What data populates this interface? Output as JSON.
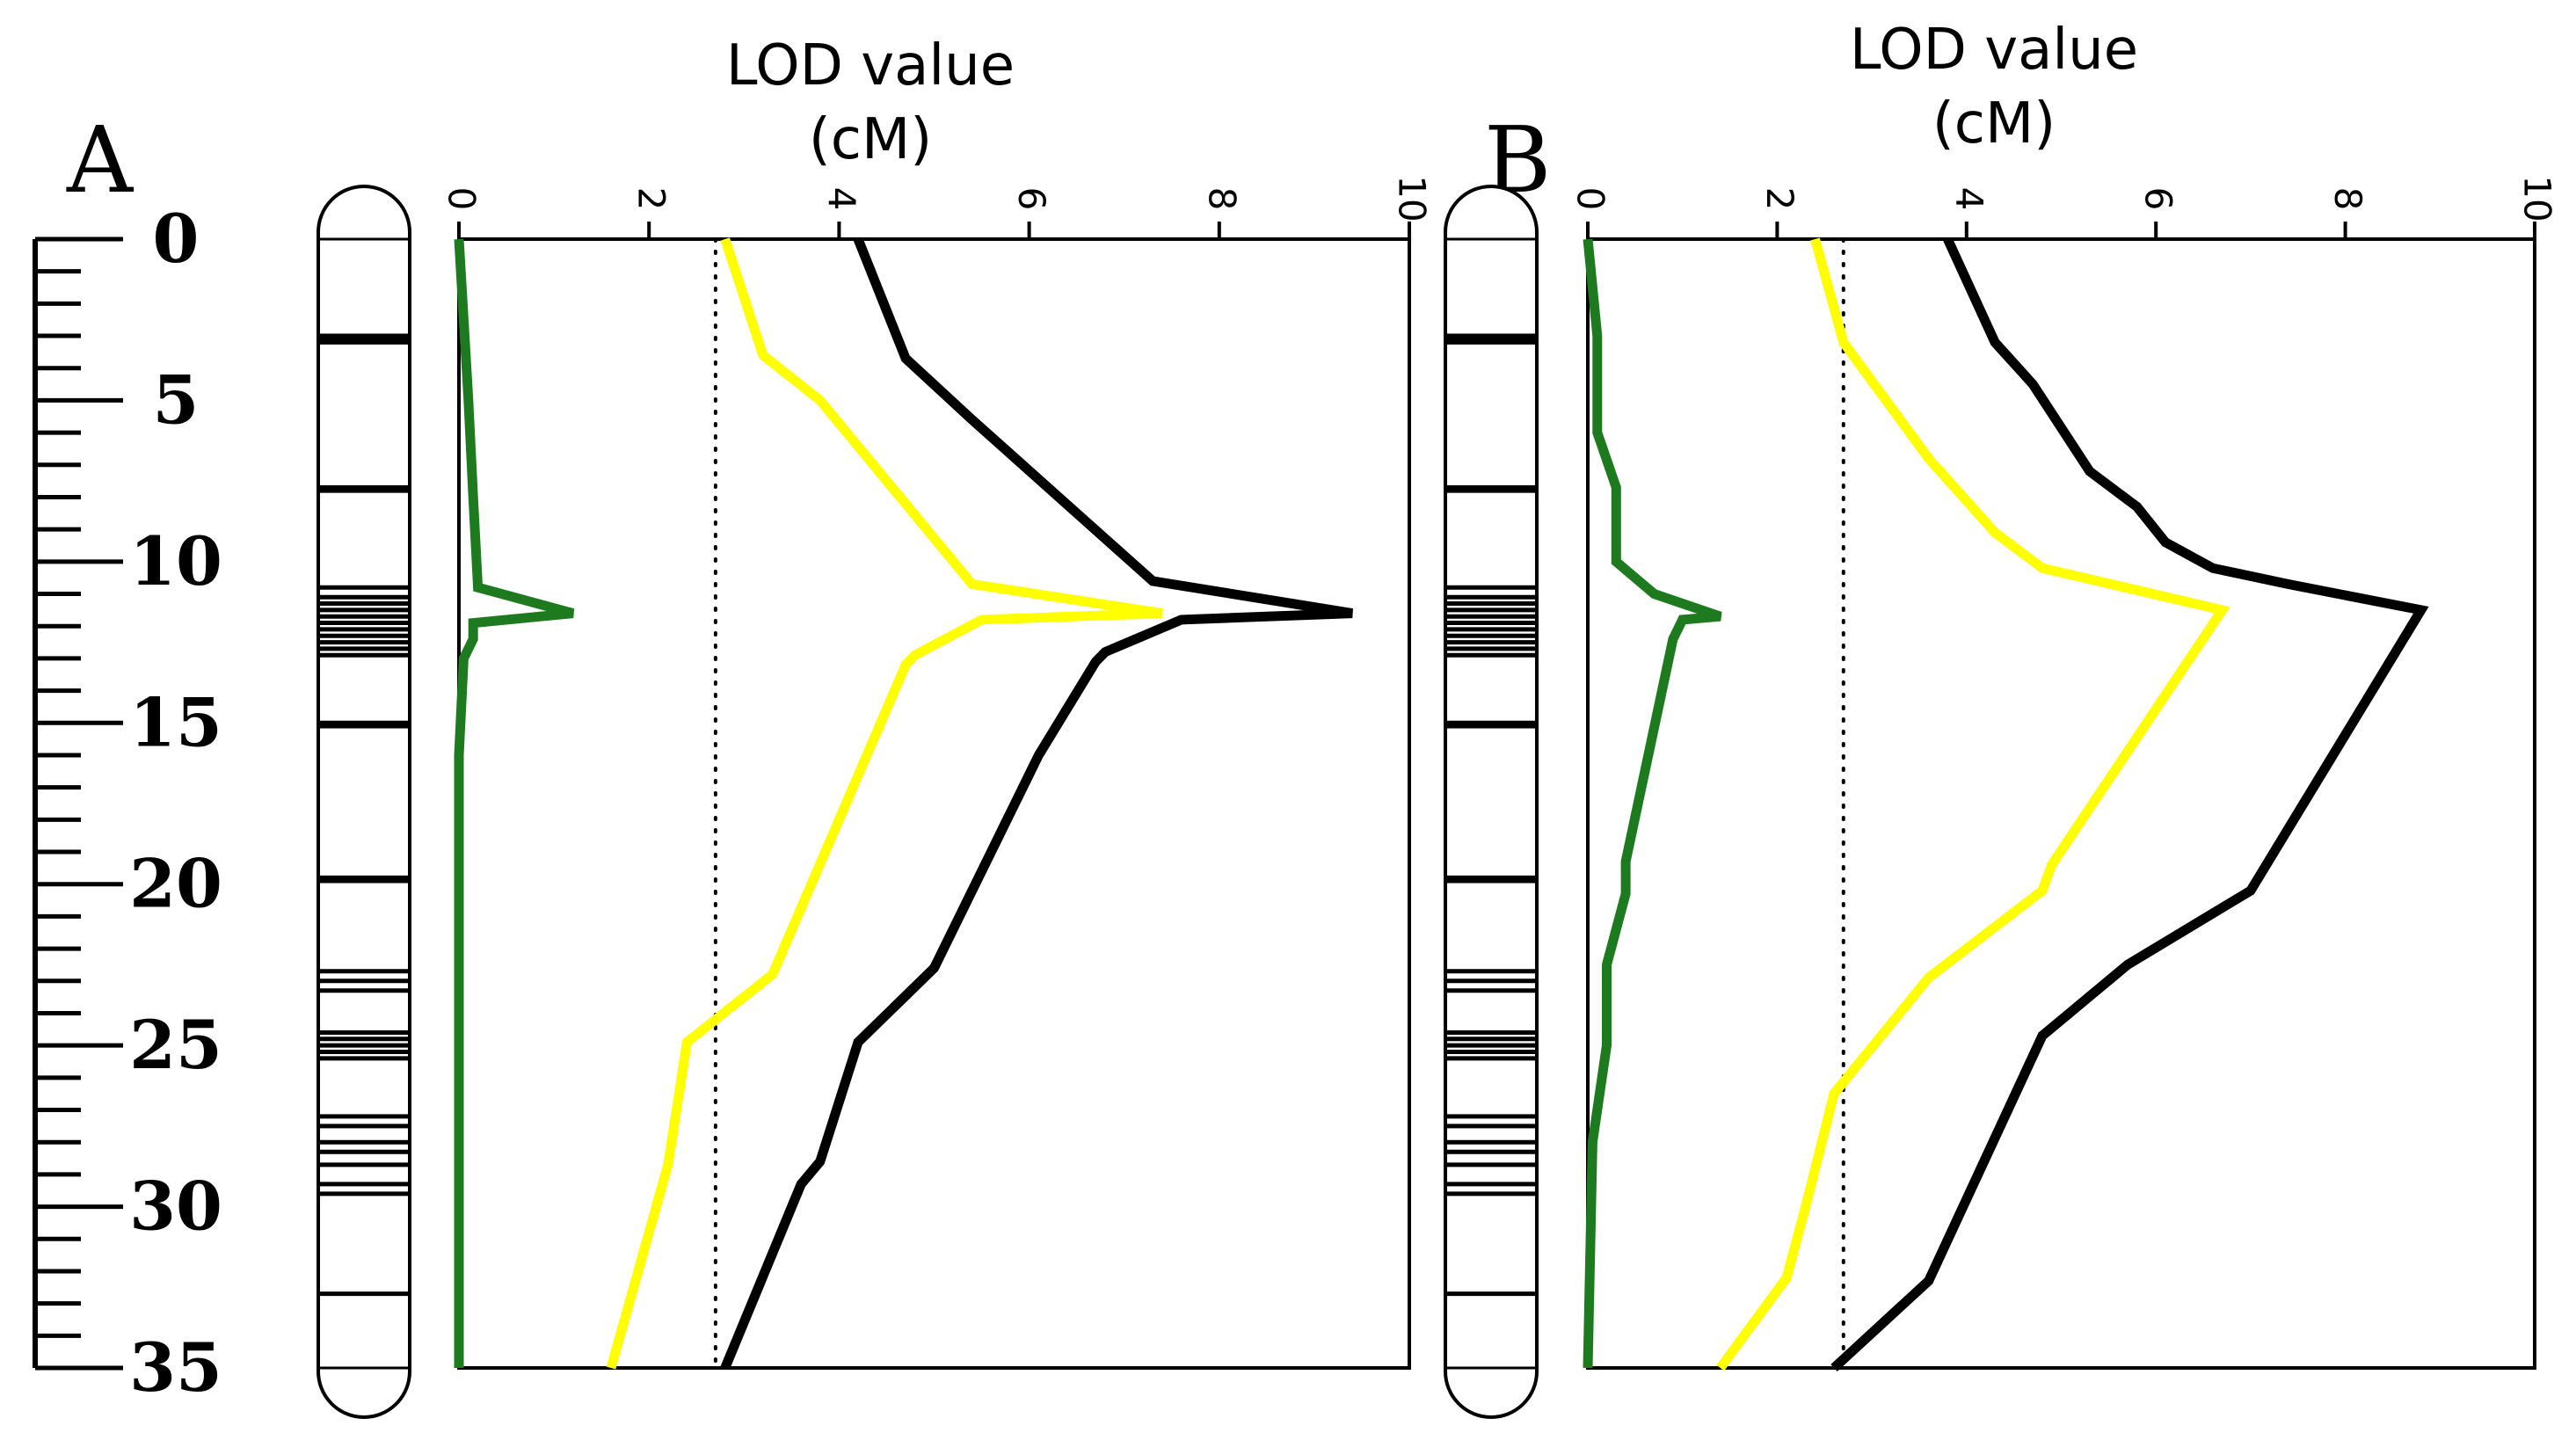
{
  "figure": {
    "ruler": {
      "labels": [
        "0",
        "5",
        "10",
        "15",
        "20",
        "25",
        "30",
        "35"
      ],
      "range": [
        0,
        35
      ]
    },
    "colors": {
      "green": "#1e7a1e",
      "yellow": "#ffff00",
      "black": "#000000"
    }
  },
  "chart_data": [
    {
      "type": "line",
      "panel_label": "A",
      "title": "LOD value",
      "subtitle": "(cM)",
      "x_axis_position": "top",
      "x_ticks": [
        "0",
        "2",
        "4",
        "6",
        "8",
        "10"
      ],
      "xlim": [
        0,
        10
      ],
      "ylim": [
        0,
        35
      ],
      "y_inverted": true,
      "threshold": 2.7,
      "marker_positions": [
        3.0,
        3.1,
        3.2,
        7.7,
        7.8,
        10.8,
        11.1,
        11.3,
        11.5,
        11.7,
        11.9,
        12.1,
        12.3,
        12.5,
        12.7,
        12.9,
        15.0,
        15.1,
        19.8,
        19.9,
        22.7,
        23.0,
        23.3,
        24.6,
        24.8,
        25.0,
        25.2,
        25.4,
        27.2,
        27.5,
        28.0,
        28.3,
        28.7,
        29.3,
        29.6,
        32.7
      ],
      "series": [
        {
          "color": "#1e7a1e",
          "points": [
            [
              0,
              0
            ],
            [
              0.1,
              5
            ],
            [
              0.15,
              8
            ],
            [
              0.2,
              10.8
            ],
            [
              1.2,
              11.6
            ],
            [
              0.15,
              11.9
            ],
            [
              0.15,
              12.4
            ],
            [
              0.05,
              13
            ],
            [
              0,
              16
            ],
            [
              0,
              25
            ],
            [
              0,
              35
            ]
          ]
        },
        {
          "color": "#ffff00",
          "points": [
            [
              2.8,
              0
            ],
            [
              3.2,
              3.6
            ],
            [
              3.8,
              5
            ],
            [
              5.4,
              10.7
            ],
            [
              7.4,
              11.6
            ],
            [
              5.5,
              11.8
            ],
            [
              4.8,
              12.9
            ],
            [
              4.7,
              13.2
            ],
            [
              3.3,
              22.8
            ],
            [
              2.4,
              24.9
            ],
            [
              2.2,
              28.7
            ],
            [
              1.6,
              35
            ]
          ]
        },
        {
          "color": "#000000",
          "points": [
            [
              4.2,
              0
            ],
            [
              4.7,
              3.7
            ],
            [
              5.4,
              5.6
            ],
            [
              7.3,
              10.6
            ],
            [
              9.4,
              11.6
            ],
            [
              7.6,
              11.8
            ],
            [
              6.8,
              12.8
            ],
            [
              6.7,
              13.1
            ],
            [
              6.1,
              16
            ],
            [
              5.0,
              22.6
            ],
            [
              4.2,
              24.9
            ],
            [
              3.8,
              28.6
            ],
            [
              3.6,
              29.3
            ],
            [
              2.8,
              35
            ]
          ]
        }
      ]
    },
    {
      "type": "line",
      "panel_label": "B",
      "title": "LOD value",
      "subtitle": "(cM)",
      "x_axis_position": "top",
      "x_ticks": [
        "0",
        "2",
        "4",
        "6",
        "8",
        "10"
      ],
      "xlim": [
        0,
        10
      ],
      "ylim": [
        0,
        35
      ],
      "y_inverted": true,
      "threshold": 2.7,
      "marker_positions": [
        3.0,
        3.1,
        3.2,
        7.7,
        7.8,
        10.8,
        11.1,
        11.3,
        11.5,
        11.7,
        11.9,
        12.1,
        12.3,
        12.5,
        12.7,
        12.9,
        15.0,
        15.1,
        19.8,
        19.9,
        22.7,
        23.0,
        23.3,
        24.6,
        24.8,
        25.0,
        25.2,
        25.4,
        27.2,
        27.5,
        28.0,
        28.3,
        28.7,
        29.3,
        29.6,
        32.7
      ],
      "series": [
        {
          "color": "#1e7a1e",
          "points": [
            [
              0,
              0
            ],
            [
              0.1,
              3
            ],
            [
              0.1,
              6
            ],
            [
              0.3,
              7.7
            ],
            [
              0.3,
              10
            ],
            [
              0.7,
              11
            ],
            [
              1.4,
              11.7
            ],
            [
              1.0,
              11.8
            ],
            [
              0.9,
              12.4
            ],
            [
              0.4,
              19.3
            ],
            [
              0.4,
              20.3
            ],
            [
              0.2,
              22.5
            ],
            [
              0.2,
              25
            ],
            [
              0.05,
              28
            ],
            [
              0,
              35
            ]
          ]
        },
        {
          "color": "#ffff00",
          "points": [
            [
              2.4,
              0
            ],
            [
              2.7,
              3.2
            ],
            [
              3.6,
              6.8
            ],
            [
              4.3,
              9.1
            ],
            [
              4.8,
              10.2
            ],
            [
              6.7,
              11.5
            ],
            [
              4.9,
              19.4
            ],
            [
              4.8,
              20.2
            ],
            [
              3.6,
              22.9
            ],
            [
              2.6,
              26.5
            ],
            [
              2.3,
              30
            ],
            [
              2.1,
              32.2
            ],
            [
              1.4,
              35
            ]
          ]
        },
        {
          "color": "#000000",
          "points": [
            [
              3.8,
              0
            ],
            [
              4.3,
              3.2
            ],
            [
              4.7,
              4.5
            ],
            [
              5.3,
              7.2
            ],
            [
              5.8,
              8.3
            ],
            [
              6.1,
              9.4
            ],
            [
              6.6,
              10.2
            ],
            [
              7.4,
              10.7
            ],
            [
              8.8,
              11.5
            ],
            [
              7.0,
              20.2
            ],
            [
              5.7,
              22.5
            ],
            [
              4.8,
              24.7
            ],
            [
              3.6,
              32.3
            ],
            [
              2.6,
              35
            ]
          ]
        }
      ]
    }
  ]
}
